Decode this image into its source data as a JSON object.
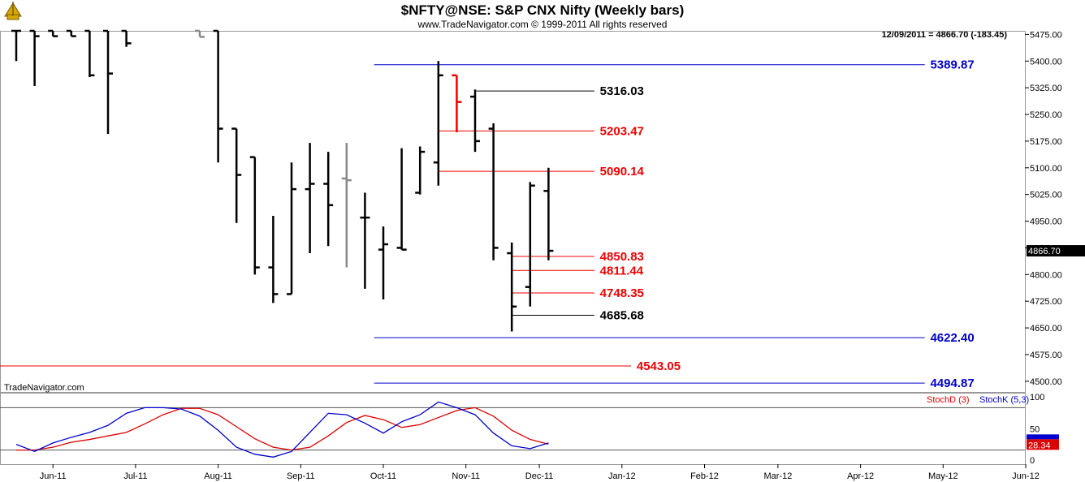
{
  "header": {
    "title": "$NFTY@NSE:  S&P CNX Nifty  (Weekly bars)",
    "copyright": "www.TradeNavigator.com © 1999-2011 All rights reserved",
    "last_info": "12/09/2011 = 4866.70 (-183.45)",
    "watermark": "TradeNavigator.com"
  },
  "colors": {
    "bar": "#000000",
    "up_bar": "#00dd00",
    "gray_bar": "#888888",
    "red_bar": "#ee0000",
    "blue_level": "#0000cc",
    "red_level": "#ee0000",
    "black_level": "#000000",
    "stoch_d": "#dd0000",
    "stoch_k": "#0000cc",
    "frame": "#999999"
  },
  "chart_data": [
    {
      "type": "ohlc",
      "name": "price",
      "ylim": [
        4470,
        5485
      ],
      "y_ticks": [
        "5475.00",
        "5400.00",
        "5325.00",
        "5250.00",
        "5175.00",
        "5100.00",
        "5025.00",
        "4950.00",
        "4875.00",
        "4800.00",
        "4725.00",
        "4650.00",
        "4575.00",
        "4500.00"
      ],
      "y_tick_values": [
        5475,
        5400,
        5325,
        5250,
        5175,
        5100,
        5025,
        4950,
        4875,
        4800,
        4725,
        4650,
        4575,
        4500
      ],
      "x_labels": [
        {
          "label": "Jun-11",
          "bar": 2
        },
        {
          "label": "Jul-11",
          "bar": 6.5
        },
        {
          "label": "Aug-11",
          "bar": 11
        },
        {
          "label": "Sep-11",
          "bar": 15.5
        },
        {
          "label": "Oct-11",
          "bar": 20
        },
        {
          "label": "Nov-11",
          "bar": 24.5
        },
        {
          "label": "Dec-11",
          "bar": 28.5
        },
        {
          "label": "Jan-12",
          "bar": 33
        },
        {
          "label": "Feb-12",
          "bar": 37.5
        },
        {
          "label": "Mar-12",
          "bar": 41.5
        },
        {
          "label": "Apr-12",
          "bar": 46
        },
        {
          "label": "May-12",
          "bar": 50.5
        },
        {
          "label": "Jun-12",
          "bar": 55
        }
      ],
      "last_price_label": "4866.70",
      "last_price": 4866.7,
      "bars": [
        {
          "o": 5485,
          "h": 5485,
          "l": 5400,
          "c": 5485,
          "color": "bar"
        },
        {
          "o": 5485,
          "h": 5485,
          "l": 5330,
          "c": 5470,
          "color": "bar"
        },
        {
          "o": 5485,
          "h": 5485,
          "l": 5470,
          "c": 5470,
          "color": "bar"
        },
        {
          "o": 5485,
          "h": 5485,
          "l": 5470,
          "c": 5470,
          "color": "bar"
        },
        {
          "o": 5485,
          "h": 5485,
          "l": 5355,
          "c": 5360,
          "color": "bar"
        },
        {
          "o": 5485,
          "h": 5485,
          "l": 5195,
          "c": 5365,
          "color": "bar"
        },
        {
          "o": 5485,
          "h": 5485,
          "l": 5440,
          "c": 5450,
          "color": "bar"
        },
        {
          "o": null,
          "h": null,
          "l": null,
          "c": null,
          "color": "bar"
        },
        {
          "o": null,
          "h": null,
          "l": null,
          "c": null,
          "color": "bar"
        },
        {
          "o": null,
          "h": null,
          "l": null,
          "c": null,
          "color": "bar"
        },
        {
          "o": 5485,
          "h": 5485,
          "l": 5468,
          "c": 5468,
          "color": "gray_bar"
        },
        {
          "o": 5485,
          "h": 5485,
          "l": 5115,
          "c": 5210,
          "color": "bar"
        },
        {
          "o": 5210,
          "h": 5210,
          "l": 4945,
          "c": 5080,
          "color": "bar"
        },
        {
          "o": 5130,
          "h": 5130,
          "l": 4800,
          "c": 4820,
          "color": "bar"
        },
        {
          "o": 4820,
          "h": 4965,
          "l": 4720,
          "c": 4745,
          "color": "bar"
        },
        {
          "o": 4745,
          "h": 5115,
          "l": 4745,
          "c": 5040,
          "color": "bar"
        },
        {
          "o": 5040,
          "h": 5170,
          "l": 4860,
          "c": 5055,
          "color": "bar"
        },
        {
          "o": 5055,
          "h": 5145,
          "l": 4880,
          "c": 4995,
          "color": "bar"
        },
        {
          "o": 5070,
          "h": 5170,
          "l": 4820,
          "c": 5065,
          "color": "gray_bar"
        },
        {
          "o": 4960,
          "h": 5030,
          "l": 4760,
          "c": 4960,
          "color": "bar"
        },
        {
          "o": 4870,
          "h": 4935,
          "l": 4730,
          "c": 4885,
          "color": "bar"
        },
        {
          "o": 4875,
          "h": 5155,
          "l": 4870,
          "c": 4870,
          "color": "bar"
        },
        {
          "o": 5030,
          "h": 5160,
          "l": 5025,
          "c": 5145,
          "color": "bar"
        },
        {
          "o": 5115,
          "h": 5400,
          "l": 5050,
          "c": 5360,
          "color": "bar"
        },
        {
          "o": 5360,
          "h": 5360,
          "l": 5200,
          "c": 5285,
          "color": "red_bar"
        },
        {
          "o": 5300,
          "h": 5320,
          "l": 5145,
          "c": 5175,
          "color": "bar"
        },
        {
          "o": 5210,
          "h": 5225,
          "l": 4840,
          "c": 4875,
          "color": "bar"
        },
        {
          "o": 4860,
          "h": 4890,
          "l": 4640,
          "c": 4710,
          "color": "bar"
        },
        {
          "o": 4765,
          "h": 5060,
          "l": 4710,
          "c": 5050,
          "color": "bar"
        },
        {
          "o": 5035,
          "h": 5100,
          "l": 4840,
          "c": 4866.7,
          "color": "bar"
        }
      ],
      "levels": [
        {
          "value": 5389.87,
          "label": "5389.87",
          "color": "blue_level",
          "from_bar": 19.5,
          "to_bar": 49.5,
          "label_bar": 49.8
        },
        {
          "value": 5316.03,
          "label": "5316.03",
          "color": "black_level",
          "from_bar": 25,
          "to_bar": 31.5,
          "label_bar": 31.8
        },
        {
          "value": 5203.47,
          "label": "5203.47",
          "color": "red_level",
          "from_bar": 23,
          "to_bar": 31.5,
          "label_bar": 31.8
        },
        {
          "value": 5090.14,
          "label": "5090.14",
          "color": "red_level",
          "from_bar": 23,
          "to_bar": 31.5,
          "label_bar": 31.8
        },
        {
          "value": 4850.83,
          "label": "4850.83",
          "color": "red_level",
          "from_bar": 27,
          "to_bar": 31.5,
          "label_bar": 31.8
        },
        {
          "value": 4811.44,
          "label": "4811.44",
          "color": "red_level",
          "from_bar": 27,
          "to_bar": 31.5,
          "label_bar": 31.8
        },
        {
          "value": 4748.35,
          "label": "4748.35",
          "color": "red_level",
          "from_bar": 27,
          "to_bar": 31.5,
          "label_bar": 31.8
        },
        {
          "value": 4685.68,
          "label": "4685.68",
          "color": "black_level",
          "from_bar": 27,
          "to_bar": 31.5,
          "label_bar": 31.8
        },
        {
          "value": 4622.4,
          "label": "4622.40",
          "color": "blue_level",
          "from_bar": 19.5,
          "to_bar": 49.5,
          "label_bar": 49.8
        },
        {
          "value": 4543.05,
          "label": "4543.05",
          "color": "red_level",
          "from_bar": -1,
          "to_bar": 33.5,
          "label_bar": 33.8
        },
        {
          "value": 4494.87,
          "label": "4494.87",
          "color": "blue_level",
          "from_bar": 19.5,
          "to_bar": 49.5,
          "label_bar": 49.8
        }
      ]
    },
    {
      "type": "line",
      "name": "stochastic",
      "ylim": [
        0,
        100
      ],
      "y_ticks": [
        "100",
        "50",
        "0"
      ],
      "y_tick_values": [
        100,
        50,
        0
      ],
      "guides": [
        80,
        20
      ],
      "last_value_label": "28.34",
      "legend": [
        {
          "label": "StochD (3)",
          "color": "stoch_d"
        },
        {
          "label": "StochK (5,3)",
          "color": "stoch_k"
        }
      ],
      "series": [
        {
          "name": "StochD (3)",
          "color": "stoch_d",
          "values": [
            20,
            20,
            24,
            31,
            35,
            40,
            45,
            57,
            70,
            79,
            79,
            70,
            53,
            36,
            24,
            20,
            24,
            40,
            59,
            69,
            63,
            52,
            56,
            66,
            76,
            80,
            68,
            48,
            35,
            28.34
          ]
        },
        {
          "name": "StochK (5,3)",
          "color": "stoch_k",
          "values": [
            28,
            18,
            30,
            38,
            45,
            55,
            72,
            80,
            80,
            78,
            68,
            48,
            24,
            14,
            10,
            18,
            45,
            72,
            70,
            58,
            44,
            60,
            70,
            88,
            80,
            70,
            44,
            26,
            22,
            30
          ]
        }
      ]
    }
  ]
}
